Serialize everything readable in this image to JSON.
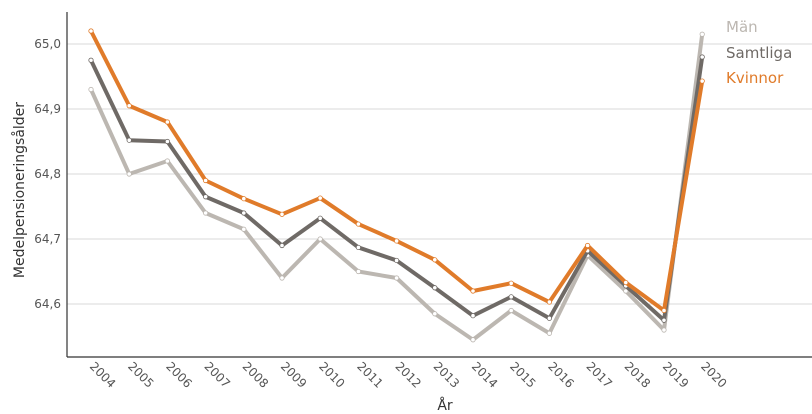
{
  "chart_data": {
    "type": "line",
    "title": "",
    "xlabel": "År",
    "ylabel": "Medelpensioneringsålder",
    "x": [
      "2004",
      "2005",
      "2006",
      "2007",
      "2008",
      "2009",
      "2010",
      "2011",
      "2012",
      "2013",
      "2014",
      "2015",
      "2016",
      "2017",
      "2018",
      "2019",
      "2020"
    ],
    "y_ticks": [
      "64,6",
      "64,7",
      "64,8",
      "64,9",
      "65,0"
    ],
    "ylim": [
      64.5,
      65.03
    ],
    "grid": "horizontal",
    "legend_position": "right, at line ends",
    "series": [
      {
        "name": "Män",
        "color": "#bcb7b1",
        "values": [
          64.93,
          64.8,
          64.82,
          64.74,
          64.715,
          64.64,
          64.7,
          64.65,
          64.64,
          64.585,
          64.545,
          64.59,
          64.555,
          64.675,
          64.62,
          64.56,
          65.015
        ]
      },
      {
        "name": "Samtliga",
        "color": "#6f6a66",
        "values": [
          64.975,
          64.852,
          64.85,
          64.765,
          64.74,
          64.69,
          64.732,
          64.687,
          64.667,
          64.625,
          64.582,
          64.611,
          64.578,
          64.682,
          64.628,
          64.575,
          64.98
        ]
      },
      {
        "name": "Kvinnor",
        "color": "#e07b2a",
        "values": [
          65.02,
          64.905,
          64.88,
          64.79,
          64.762,
          64.738,
          64.763,
          64.723,
          64.697,
          64.668,
          64.62,
          64.632,
          64.603,
          64.69,
          64.633,
          64.59,
          64.943
        ]
      }
    ]
  }
}
